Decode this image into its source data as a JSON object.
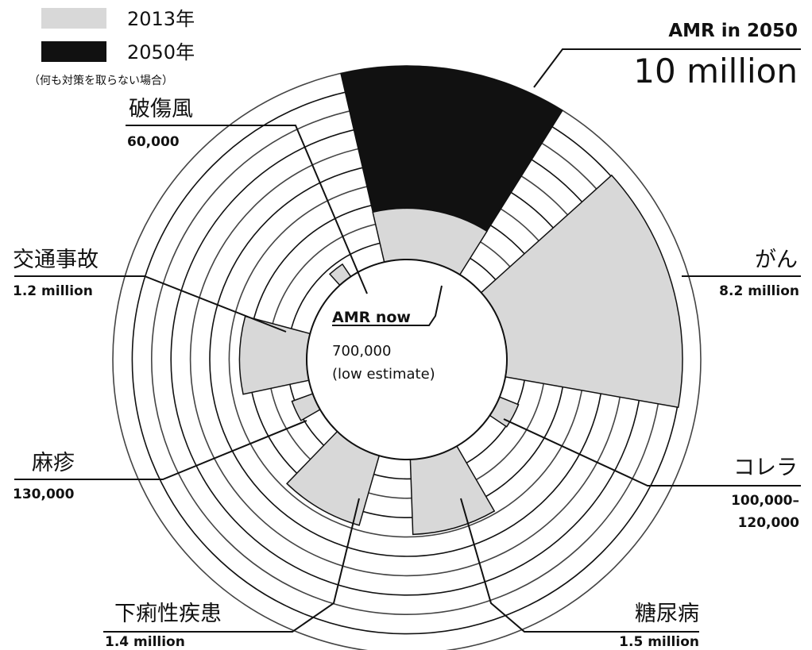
{
  "legend": [
    {
      "label": "2013年",
      "color": "#d8d8d8"
    },
    {
      "label": "2050年",
      "color": "#111111"
    }
  ],
  "legend_note": "（何も対策を取らない場合）",
  "center": {
    "title": "AMR now",
    "value": "700,000",
    "note": "(low estimate)"
  },
  "highlight": {
    "title": "AMR in 2050",
    "value": "10 million"
  },
  "chart_data": {
    "type": "polar-area",
    "title": "",
    "series": [
      {
        "name": "2013年",
        "color": "#d8d8d8"
      },
      {
        "name": "2050年",
        "color": "#111111"
      }
    ],
    "categories": [
      {
        "name": "AMR",
        "value_2013": 700000,
        "value_2050": 10000000,
        "label_2013": "700,000",
        "label_2050": "10 million"
      },
      {
        "name": "がん",
        "value_2013": 8200000,
        "label": "8.2 million"
      },
      {
        "name": "コレラ",
        "value_2013": 110000,
        "label": "100,000–\n120,000",
        "label_line1": "100,000–",
        "label_line2": "120,000"
      },
      {
        "name": "糖尿病",
        "value_2013": 1500000,
        "label": "1.5 million"
      },
      {
        "name": "下痢性疾患",
        "value_2013": 1400000,
        "label": "1.4 million"
      },
      {
        "name": "麻疹",
        "value_2013": 130000,
        "label": "130,000"
      },
      {
        "name": "交通事故",
        "value_2013": 1200000,
        "label": "1.2 million"
      },
      {
        "name": "破傷風",
        "value_2013": 60000,
        "label": "60,000"
      }
    ]
  }
}
